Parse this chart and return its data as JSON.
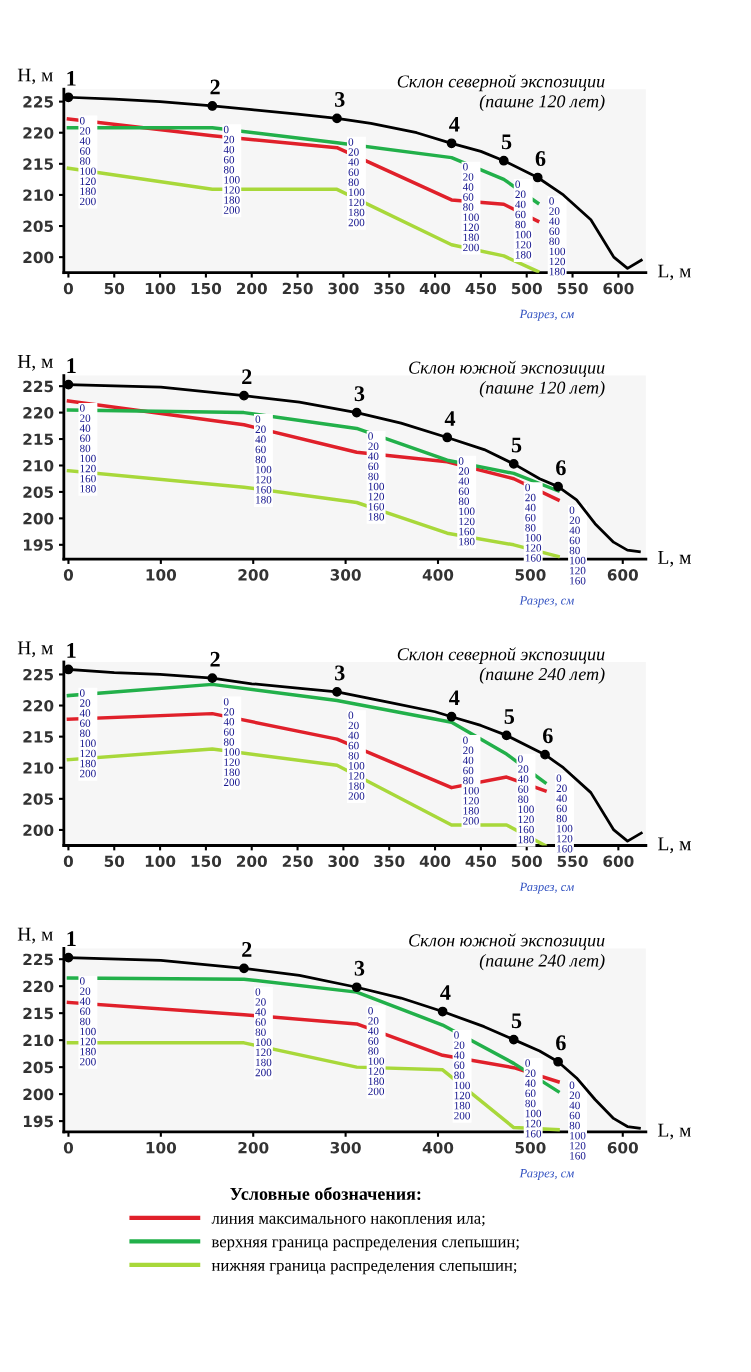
{
  "chart_data": [
    {
      "type": "line",
      "title": "Склон северной экспозиции",
      "subtitle": "(пашне 120 лет)",
      "xlabel": "L, м",
      "ylabel": "H, м",
      "xlim": [
        -5,
        630
      ],
      "xticks": [
        0,
        50,
        100,
        150,
        200,
        250,
        300,
        350,
        400,
        450,
        500,
        550,
        600
      ],
      "ylim": [
        197.5,
        227
      ],
      "yticks": [
        200,
        205,
        210,
        215,
        220,
        225
      ],
      "grid": false,
      "legend": false,
      "series": [
        {
          "color": "#000000",
          "x": [
            0,
            50,
            100,
            157,
            200,
            250,
            293,
            330,
            380,
            418,
            450,
            475,
            512,
            540,
            570,
            595,
            610,
            625
          ],
          "values": [
            225.7,
            225.4,
            225,
            224.3,
            223.7,
            223,
            222.3,
            221.5,
            220,
            218.3,
            217,
            215.5,
            212.8,
            210,
            206,
            200,
            198.2,
            199.5
          ]
        },
        {
          "type": "scatter",
          "color": "#000000",
          "x": [
            0,
            157,
            293,
            418,
            475,
            512
          ],
          "values": [
            225.7,
            224.3,
            222.3,
            218.3,
            215.5,
            212.8
          ]
        },
        {
          "color": "#e0202a",
          "x": [
            0,
            157,
            293,
            418,
            475,
            512
          ],
          "values": [
            222.2,
            219.5,
            217.6,
            209.2,
            208.5,
            205.8
          ]
        },
        {
          "color": "#22b04a",
          "x": [
            0,
            157,
            293,
            418,
            475,
            512
          ],
          "values": [
            220.8,
            220.8,
            218.4,
            216.0,
            212.5,
            208.7
          ]
        },
        {
          "color": "#a8d83a",
          "x": [
            0,
            157,
            293,
            418,
            475,
            512
          ],
          "values": [
            214.3,
            210.9,
            210.9,
            202.0,
            200.2,
            197.7
          ]
        }
      ],
      "annotations": [
        {
          "text": "1",
          "x": 0,
          "y": 225.7
        },
        {
          "text": "2",
          "x": 157,
          "y": 224.3
        },
        {
          "text": "3",
          "x": 293,
          "y": 222.3
        },
        {
          "text": "4",
          "x": 418,
          "y": 218.3
        },
        {
          "text": "5",
          "x": 475,
          "y": 215.5
        },
        {
          "text": "6",
          "x": 512,
          "y": 212.8
        },
        "0\n20\n40\n60\n80\n100\n120\n180\n200",
        "0\n20\n40\n60\n80\n100\n120\n180\n200",
        "0\n20\n40\n60\n80\n100\n120\n180\n200",
        "0\n20\n40\n60\n80\n100\n120\n180\n200",
        "0\n20\n40\n60\n80\n100\n120\n180",
        "0\n20\n40\n60\n80\n100\n120\n180",
        "Разрез, см"
      ]
    },
    {
      "type": "line",
      "title": "Склон южной экспозиции",
      "subtitle": "(пашне 120 лет)",
      "xlabel": "L, м",
      "ylabel": "H, м",
      "xlim": [
        -5,
        625
      ],
      "xticks": [
        0,
        100,
        200,
        300,
        400,
        500,
        600
      ],
      "ylim": [
        192.3,
        227
      ],
      "yticks": [
        195,
        200,
        205,
        210,
        215,
        220,
        225
      ],
      "grid": false,
      "legend": false,
      "series": [
        {
          "color": "#000000",
          "x": [
            0,
            100,
            190,
            250,
            312,
            360,
            410,
            450,
            482,
            510,
            530,
            550,
            570,
            590,
            605,
            618
          ],
          "values": [
            225.3,
            224.8,
            223.2,
            222,
            220,
            218,
            215.3,
            213,
            210.3,
            207.5,
            206,
            203.5,
            199,
            195.5,
            194,
            193.7
          ]
        },
        {
          "type": "scatter",
          "color": "#000000",
          "x": [
            0,
            190,
            312,
            410,
            482,
            530
          ],
          "values": [
            225.3,
            223.2,
            220,
            215.3,
            210.3,
            206
          ]
        },
        {
          "color": "#e0202a",
          "x": [
            0,
            190,
            312,
            410,
            482,
            530
          ],
          "values": [
            222.2,
            217.7,
            212.5,
            210.7,
            207.5,
            203.5
          ]
        },
        {
          "color": "#22b04a",
          "x": [
            0,
            190,
            312,
            410,
            482,
            530
          ],
          "values": [
            220.5,
            220.0,
            217.0,
            211.0,
            208.5,
            205.2
          ]
        },
        {
          "color": "#a8d83a",
          "x": [
            0,
            190,
            312,
            410,
            482,
            530
          ],
          "values": [
            209.0,
            205.9,
            203.0,
            197.2,
            195.0,
            192.8
          ]
        }
      ],
      "annotations": [
        {
          "text": "1",
          "x": 0,
          "y": 225.3
        },
        {
          "text": "2",
          "x": 190,
          "y": 223.2
        },
        {
          "text": "3",
          "x": 312,
          "y": 220
        },
        {
          "text": "4",
          "x": 410,
          "y": 215.3
        },
        {
          "text": "5",
          "x": 482,
          "y": 210.3
        },
        {
          "text": "6",
          "x": 530,
          "y": 206
        },
        "0\n20\n40\n60\n80\n100\n120\n160\n180",
        "0\n20\n40\n60\n80\n100\n120\n160\n180",
        "0\n20\n40\n60\n80\n100\n120\n160\n180",
        "0\n20\n40\n60\n80\n100\n120\n160\n180",
        "0\n20\n40\n60\n80\n100\n120\n160",
        "0\n20\n40\n60\n80\n100\n120\n160",
        "Разрез, см"
      ]
    },
    {
      "type": "line",
      "title": "Склон северной экспозиции",
      "subtitle": "(пашне 240 лет)",
      "xlabel": "L, м",
      "ylabel": "H, м",
      "xlim": [
        -5,
        630
      ],
      "xticks": [
        0,
        50,
        100,
        150,
        200,
        250,
        300,
        350,
        400,
        450,
        500,
        550,
        600
      ],
      "ylim": [
        197.5,
        227
      ],
      "yticks": [
        200,
        205,
        210,
        215,
        220,
        225
      ],
      "grid": false,
      "legend": false,
      "series": [
        {
          "color": "#000000",
          "x": [
            0,
            50,
            100,
            157,
            200,
            250,
            293,
            350,
            400,
            418,
            450,
            478,
            520,
            540,
            570,
            595,
            610,
            625
          ],
          "values": [
            225.8,
            225.3,
            225,
            224.4,
            223.5,
            222.8,
            222.2,
            220.5,
            219,
            218.2,
            216.8,
            215.2,
            212.1,
            210,
            206,
            200,
            198.2,
            199.5
          ]
        },
        {
          "type": "scatter",
          "color": "#000000",
          "x": [
            0,
            157,
            293,
            418,
            478,
            520
          ],
          "values": [
            225.8,
            224.4,
            222.2,
            218.2,
            215.2,
            212.1
          ]
        },
        {
          "color": "#e0202a",
          "x": [
            0,
            157,
            293,
            418,
            478,
            520
          ],
          "values": [
            217.8,
            218.7,
            214.6,
            206.8,
            208.5,
            206.3
          ]
        },
        {
          "color": "#22b04a",
          "x": [
            0,
            157,
            293,
            418,
            478,
            520
          ],
          "values": [
            221.6,
            223.4,
            220.8,
            217.3,
            212.2,
            207.6
          ]
        },
        {
          "color": "#a8d83a",
          "x": [
            0,
            157,
            293,
            418,
            478,
            520
          ],
          "values": [
            211.3,
            213.0,
            210.4,
            200.8,
            200.8,
            197.5
          ]
        }
      ],
      "annotations": [
        {
          "text": "1",
          "x": 0,
          "y": 225.8
        },
        {
          "text": "2",
          "x": 157,
          "y": 224.4
        },
        {
          "text": "3",
          "x": 293,
          "y": 222.2
        },
        {
          "text": "4",
          "x": 418,
          "y": 218.2
        },
        {
          "text": "5",
          "x": 478,
          "y": 215.2
        },
        {
          "text": "6",
          "x": 520,
          "y": 212.1
        },
        "0\n20\n40\n60\n80\n100\n120\n180\n200",
        "0\n20\n40\n60\n80\n100\n120\n180\n200",
        "0\n20\n40\n60\n80\n100\n120\n180\n200",
        "0\n20\n40\n60\n80\n100\n120\n180\n200",
        "0\n20\n40\n60\n80\n100\n120\n160\n180",
        "0\n20\n40\n60\n80\n100\n120\n160",
        "Разрез, см"
      ]
    },
    {
      "type": "line",
      "title": "Склон южной экспозиции",
      "subtitle": "(пашне 240 лет)",
      "xlabel": "L, м",
      "ylabel": "H, м",
      "xlim": [
        -5,
        625
      ],
      "xticks": [
        0,
        100,
        200,
        300,
        400,
        500,
        600
      ],
      "ylim": [
        193,
        227
      ],
      "yticks": [
        195,
        200,
        205,
        210,
        215,
        220,
        225
      ],
      "grid": false,
      "legend": "bottom",
      "legend_title": "Условные обозначения:",
      "series": [
        {
          "color": "#000000",
          "x": [
            0,
            100,
            190,
            250,
            312,
            360,
            405,
            450,
            482,
            510,
            530,
            550,
            570,
            590,
            605,
            618
          ],
          "values": [
            225.3,
            224.8,
            223.3,
            222,
            219.8,
            217.8,
            215.3,
            212.5,
            210.1,
            208,
            206.0,
            203,
            199,
            195.5,
            194,
            193.7
          ]
        },
        {
          "type": "scatter",
          "color": "#000000",
          "x": [
            0,
            190,
            312,
            405,
            482,
            530
          ],
          "values": [
            225.3,
            223.3,
            219.8,
            215.3,
            210.1,
            206.0
          ]
        },
        {
          "name": "линия максимального накопления ила;",
          "color": "#e0202a",
          "x": [
            0,
            190,
            312,
            405,
            482,
            530
          ],
          "values": [
            217.0,
            214.7,
            213.0,
            207.2,
            204.9,
            202.3
          ]
        },
        {
          "name": "верхняя граница распределения слепышин;",
          "color": "#22b04a",
          "x": [
            0,
            190,
            312,
            405,
            482,
            530
          ],
          "values": [
            221.5,
            221.3,
            218.9,
            212.8,
            205.7,
            200.5
          ]
        },
        {
          "name": "нижняя граница распределения слепышин;",
          "color": "#a8d83a",
          "x": [
            0,
            190,
            312,
            405,
            482,
            530
          ],
          "values": [
            209.5,
            209.5,
            205.0,
            204.5,
            193.8,
            193.4
          ]
        }
      ],
      "annotations": [
        {
          "text": "1",
          "x": 0,
          "y": 225.3
        },
        {
          "text": "2",
          "x": 190,
          "y": 223.3
        },
        {
          "text": "3",
          "x": 312,
          "y": 219.8
        },
        {
          "text": "4",
          "x": 405,
          "y": 215.3
        },
        {
          "text": "5",
          "x": 482,
          "y": 210.1
        },
        {
          "text": "6",
          "x": 530,
          "y": 206.0
        },
        "0\n20\n40\n60\n80\n100\n120\n180\n200",
        "0\n20\n40\n60\n80\n100\n120\n180\n200",
        "0\n20\n40\n60\n80\n100\n120\n180\n200",
        "0\n20\n40\n60\n80\n100\n120\n180\n200",
        "0\n20\n40\n60\n80\n100\n120\n160",
        "0\n20\n40\n60\n80\n100\n120\n160",
        "Разрез, см"
      ]
    }
  ]
}
